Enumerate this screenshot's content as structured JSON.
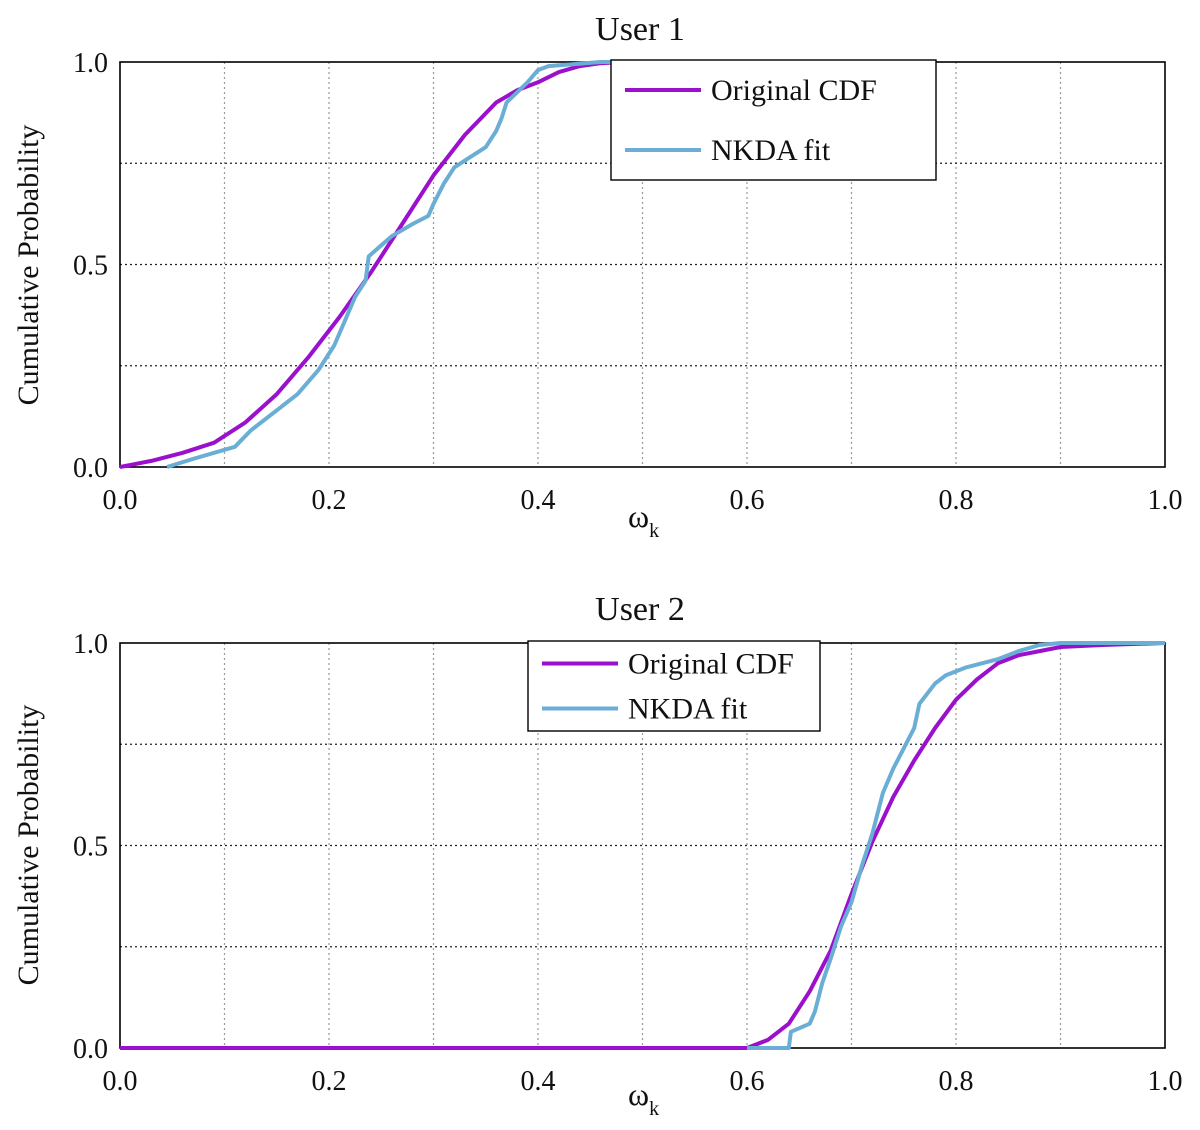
{
  "colors": {
    "original": "#9b10cc",
    "fit": "#6aaed6",
    "axis": "#000000",
    "grid": "#9a9a9a"
  },
  "chart_data": [
    {
      "type": "line",
      "title": "User 1",
      "xlabel": "ω",
      "xlabel_sub": "k",
      "ylabel": "Cumulative Probability",
      "xlim": [
        0,
        1
      ],
      "ylim": [
        0,
        1
      ],
      "xticks": [
        "0.0",
        "0.2",
        "0.4",
        "0.6",
        "0.8",
        "1.0"
      ],
      "yticks": [
        "0.0",
        "0.5",
        "1.0"
      ],
      "grid": true,
      "legend_position": "top-right",
      "series": [
        {
          "name": "Original CDF",
          "color": "original",
          "x": [
            0,
            0.03,
            0.06,
            0.09,
            0.12,
            0.15,
            0.18,
            0.21,
            0.24,
            0.27,
            0.3,
            0.33,
            0.36,
            0.38,
            0.4,
            0.42,
            0.44,
            0.46,
            0.48,
            0.5
          ],
          "y": [
            0,
            0.015,
            0.035,
            0.06,
            0.11,
            0.18,
            0.27,
            0.37,
            0.48,
            0.6,
            0.72,
            0.82,
            0.9,
            0.93,
            0.95,
            0.975,
            0.99,
            0.997,
            1.0,
            1.0
          ]
        },
        {
          "name": "NKDA fit",
          "color": "fit",
          "x": [
            0.045,
            0.07,
            0.11,
            0.125,
            0.15,
            0.17,
            0.19,
            0.205,
            0.215,
            0.225,
            0.235,
            0.238,
            0.26,
            0.28,
            0.295,
            0.3,
            0.31,
            0.32,
            0.35,
            0.36,
            0.365,
            0.37,
            0.39,
            0.4,
            0.41,
            0.46,
            0.5
          ],
          "y": [
            0,
            0.02,
            0.05,
            0.09,
            0.14,
            0.18,
            0.24,
            0.3,
            0.36,
            0.42,
            0.46,
            0.52,
            0.57,
            0.6,
            0.62,
            0.65,
            0.7,
            0.74,
            0.79,
            0.83,
            0.86,
            0.9,
            0.95,
            0.98,
            0.99,
            1.0,
            1.0
          ]
        }
      ]
    },
    {
      "type": "line",
      "title": "User 2",
      "xlabel": "ω",
      "xlabel_sub": "k",
      "ylabel": "Cumulative Probability",
      "xlim": [
        0,
        1
      ],
      "ylim": [
        0,
        1
      ],
      "xticks": [
        "0.0",
        "0.2",
        "0.4",
        "0.6",
        "0.8",
        "1.0"
      ],
      "yticks": [
        "0.0",
        "0.5",
        "1.0"
      ],
      "grid": true,
      "legend_position": "top-center",
      "series": [
        {
          "name": "Original CDF",
          "color": "original",
          "x": [
            0,
            0.6,
            0.62,
            0.64,
            0.66,
            0.68,
            0.7,
            0.72,
            0.74,
            0.76,
            0.78,
            0.8,
            0.82,
            0.84,
            0.86,
            0.88,
            0.9,
            0.94,
            1.0
          ],
          "y": [
            0,
            0,
            0.02,
            0.06,
            0.14,
            0.24,
            0.38,
            0.51,
            0.62,
            0.71,
            0.79,
            0.86,
            0.91,
            0.95,
            0.97,
            0.98,
            0.99,
            0.995,
            1.0
          ]
        },
        {
          "name": "NKDA fit",
          "color": "fit",
          "x": [
            0.6,
            0.64,
            0.642,
            0.66,
            0.665,
            0.672,
            0.68,
            0.69,
            0.7,
            0.71,
            0.72,
            0.73,
            0.74,
            0.75,
            0.76,
            0.765,
            0.78,
            0.79,
            0.81,
            0.84,
            0.86,
            0.88,
            0.9,
            1.0
          ],
          "y": [
            0,
            0,
            0.04,
            0.06,
            0.09,
            0.16,
            0.22,
            0.3,
            0.36,
            0.45,
            0.53,
            0.63,
            0.69,
            0.74,
            0.79,
            0.85,
            0.9,
            0.92,
            0.94,
            0.96,
            0.98,
            0.995,
            1.0,
            1.0
          ]
        }
      ]
    }
  ]
}
